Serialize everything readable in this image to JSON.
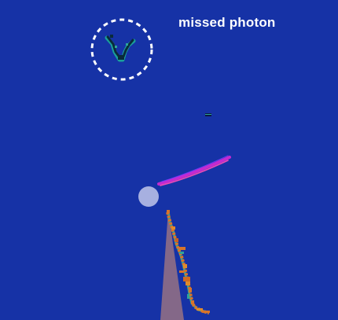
{
  "annotation": {
    "label": "missed photon"
  },
  "colors": {
    "background": "#1632a6",
    "annotation_text": "#ffffff",
    "highlight_circle": "#ffffff",
    "vertex_marker": "#a7b0e0",
    "beam_cone": "#8a6b86",
    "track_magenta": "#c42ad0",
    "track_pink": "#ff4fb8",
    "shower_orange": "#d8742a",
    "shower_teal": "#2fa59a",
    "photon_dark": "#0a2a3a",
    "photon_teal": "#1aa09a"
  }
}
